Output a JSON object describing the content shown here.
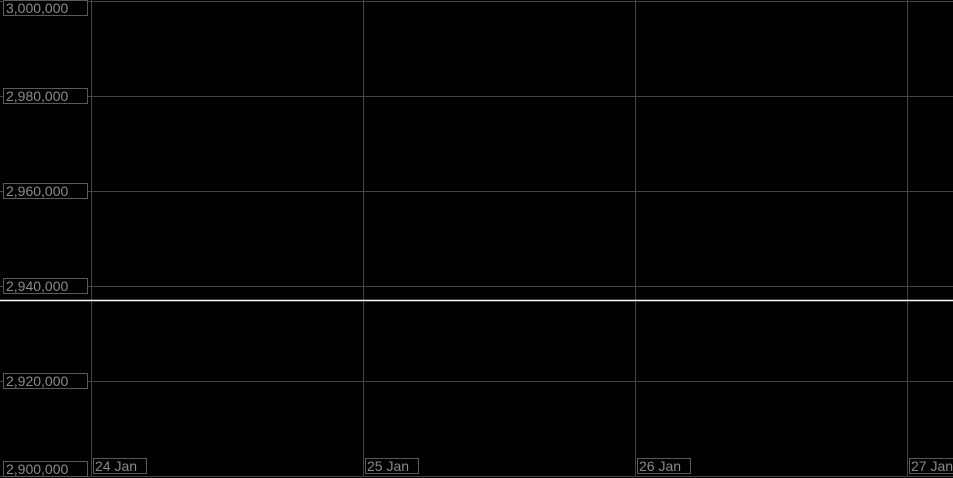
{
  "chart_data": {
    "type": "line",
    "title": "",
    "xlabel": "",
    "ylabel": "",
    "ylim": [
      2900000,
      3000000
    ],
    "y_ticks": [
      "3,000,000",
      "2,980,000",
      "2,960,000",
      "2,940,000",
      "2,920,000",
      "2,900,000"
    ],
    "y_tick_values": [
      3000000,
      2980000,
      2960000,
      2940000,
      2920000,
      2900000
    ],
    "x_ticks": [
      "24 Jan",
      "25 Jan",
      "26 Jan",
      "27 Jan"
    ],
    "grid": true,
    "legend": "none",
    "background": "#000000",
    "grid_color": "#444444",
    "series": [
      {
        "x": [
          "24 Jan",
          "25 Jan",
          "26 Jan",
          "27 Jan"
        ],
        "values": [
          2937000,
          2937000,
          2937000,
          2937000
        ],
        "color": "#ffffff"
      }
    ]
  }
}
